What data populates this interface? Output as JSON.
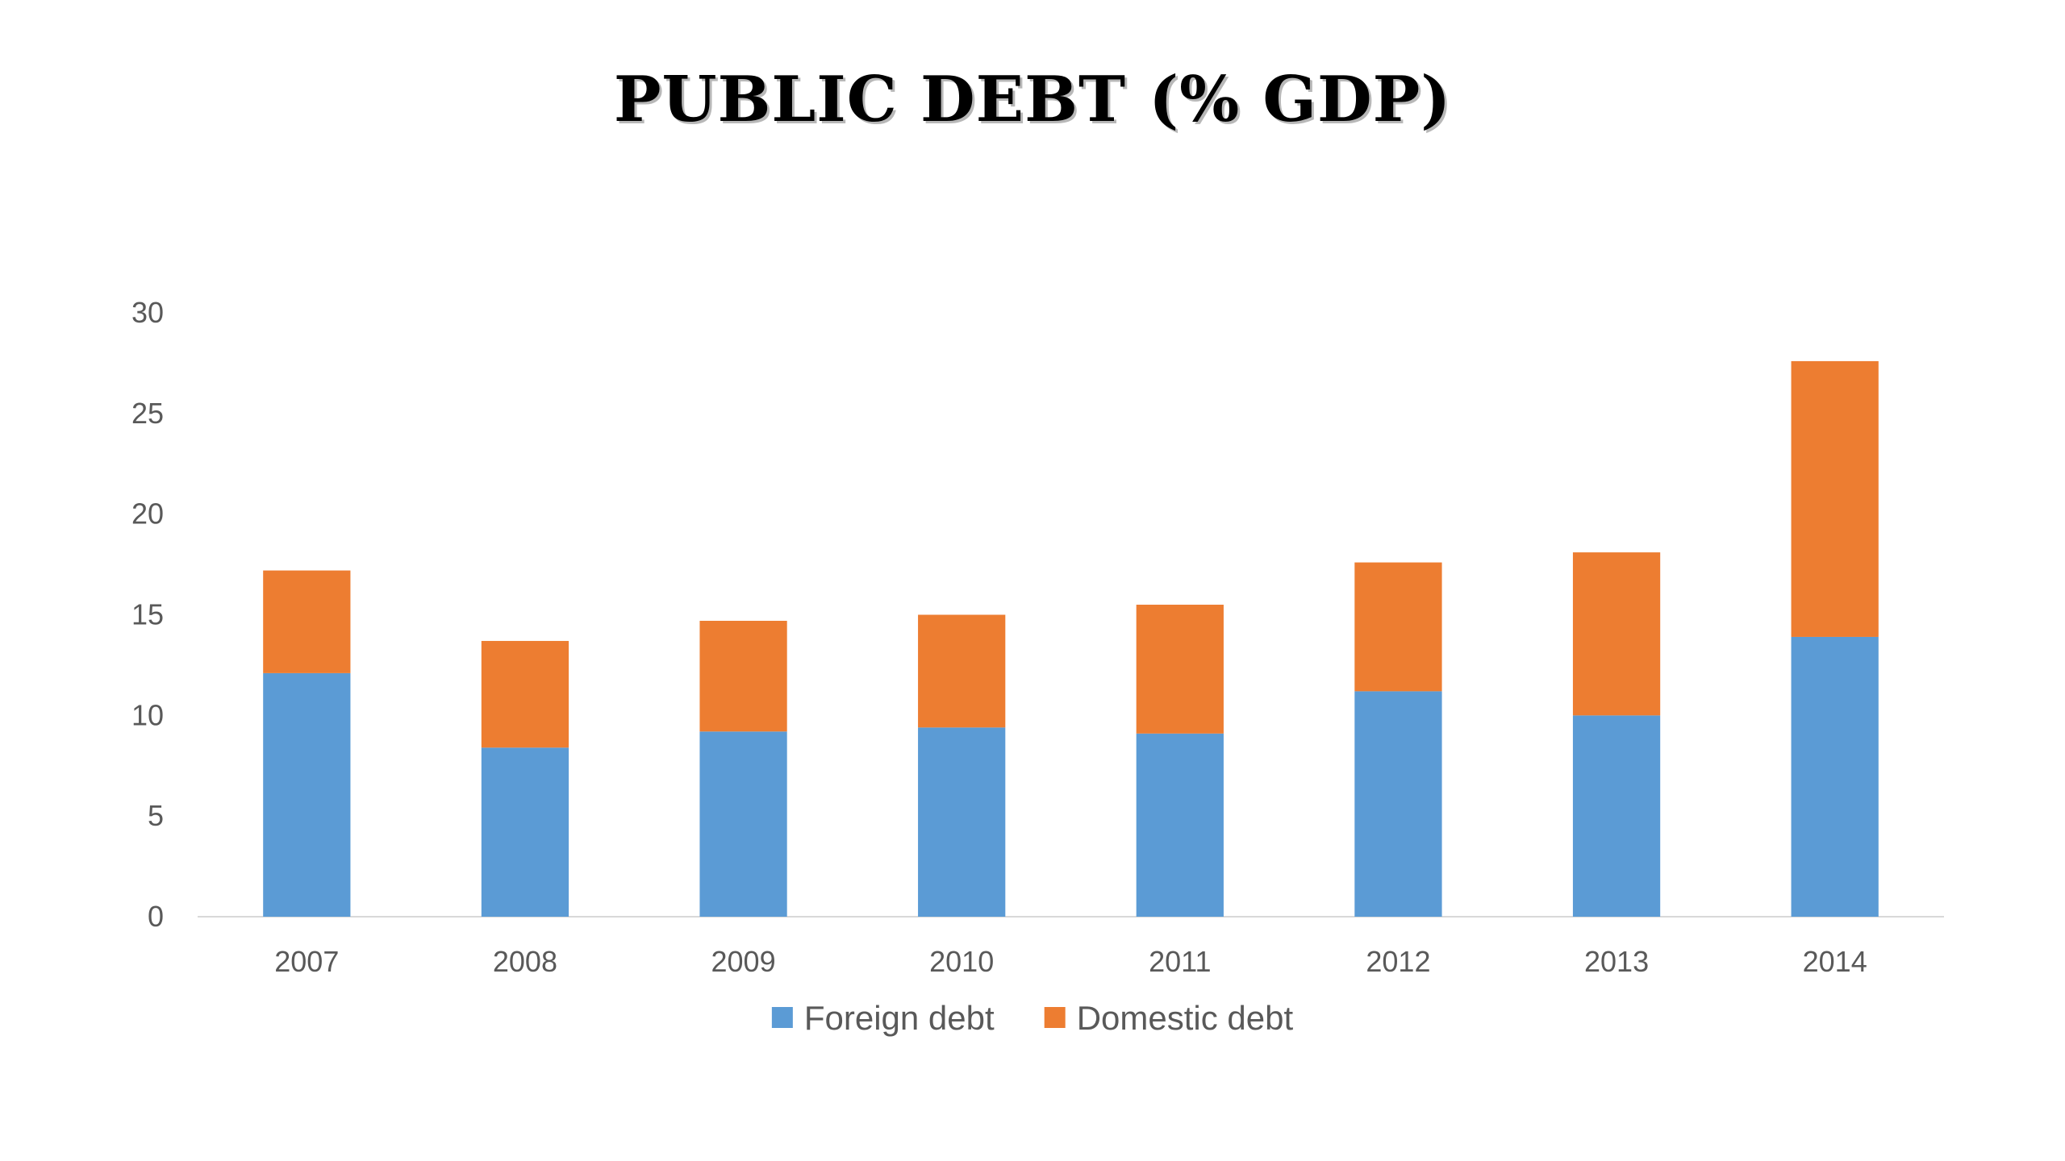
{
  "chart_data": {
    "type": "bar",
    "stacked": true,
    "title": "PUBLIC DEBT (% GDP)",
    "xlabel": "",
    "ylabel": "",
    "categories": [
      "2007",
      "2008",
      "2009",
      "2010",
      "2011",
      "2012",
      "2013",
      "2014"
    ],
    "series": [
      {
        "name": "Foreign debt",
        "color": "#5b9bd5",
        "values": [
          12.1,
          8.4,
          9.2,
          9.4,
          9.1,
          11.2,
          10.0,
          13.9
        ]
      },
      {
        "name": "Domestic debt",
        "color": "#ed7d31",
        "values": [
          5.1,
          5.3,
          5.5,
          5.6,
          6.4,
          6.4,
          8.1,
          13.7
        ]
      }
    ],
    "ylim": [
      0,
      30
    ],
    "yticks": [
      0,
      5,
      10,
      15,
      20,
      25,
      30
    ],
    "grid": false,
    "legend_position": "bottom"
  }
}
